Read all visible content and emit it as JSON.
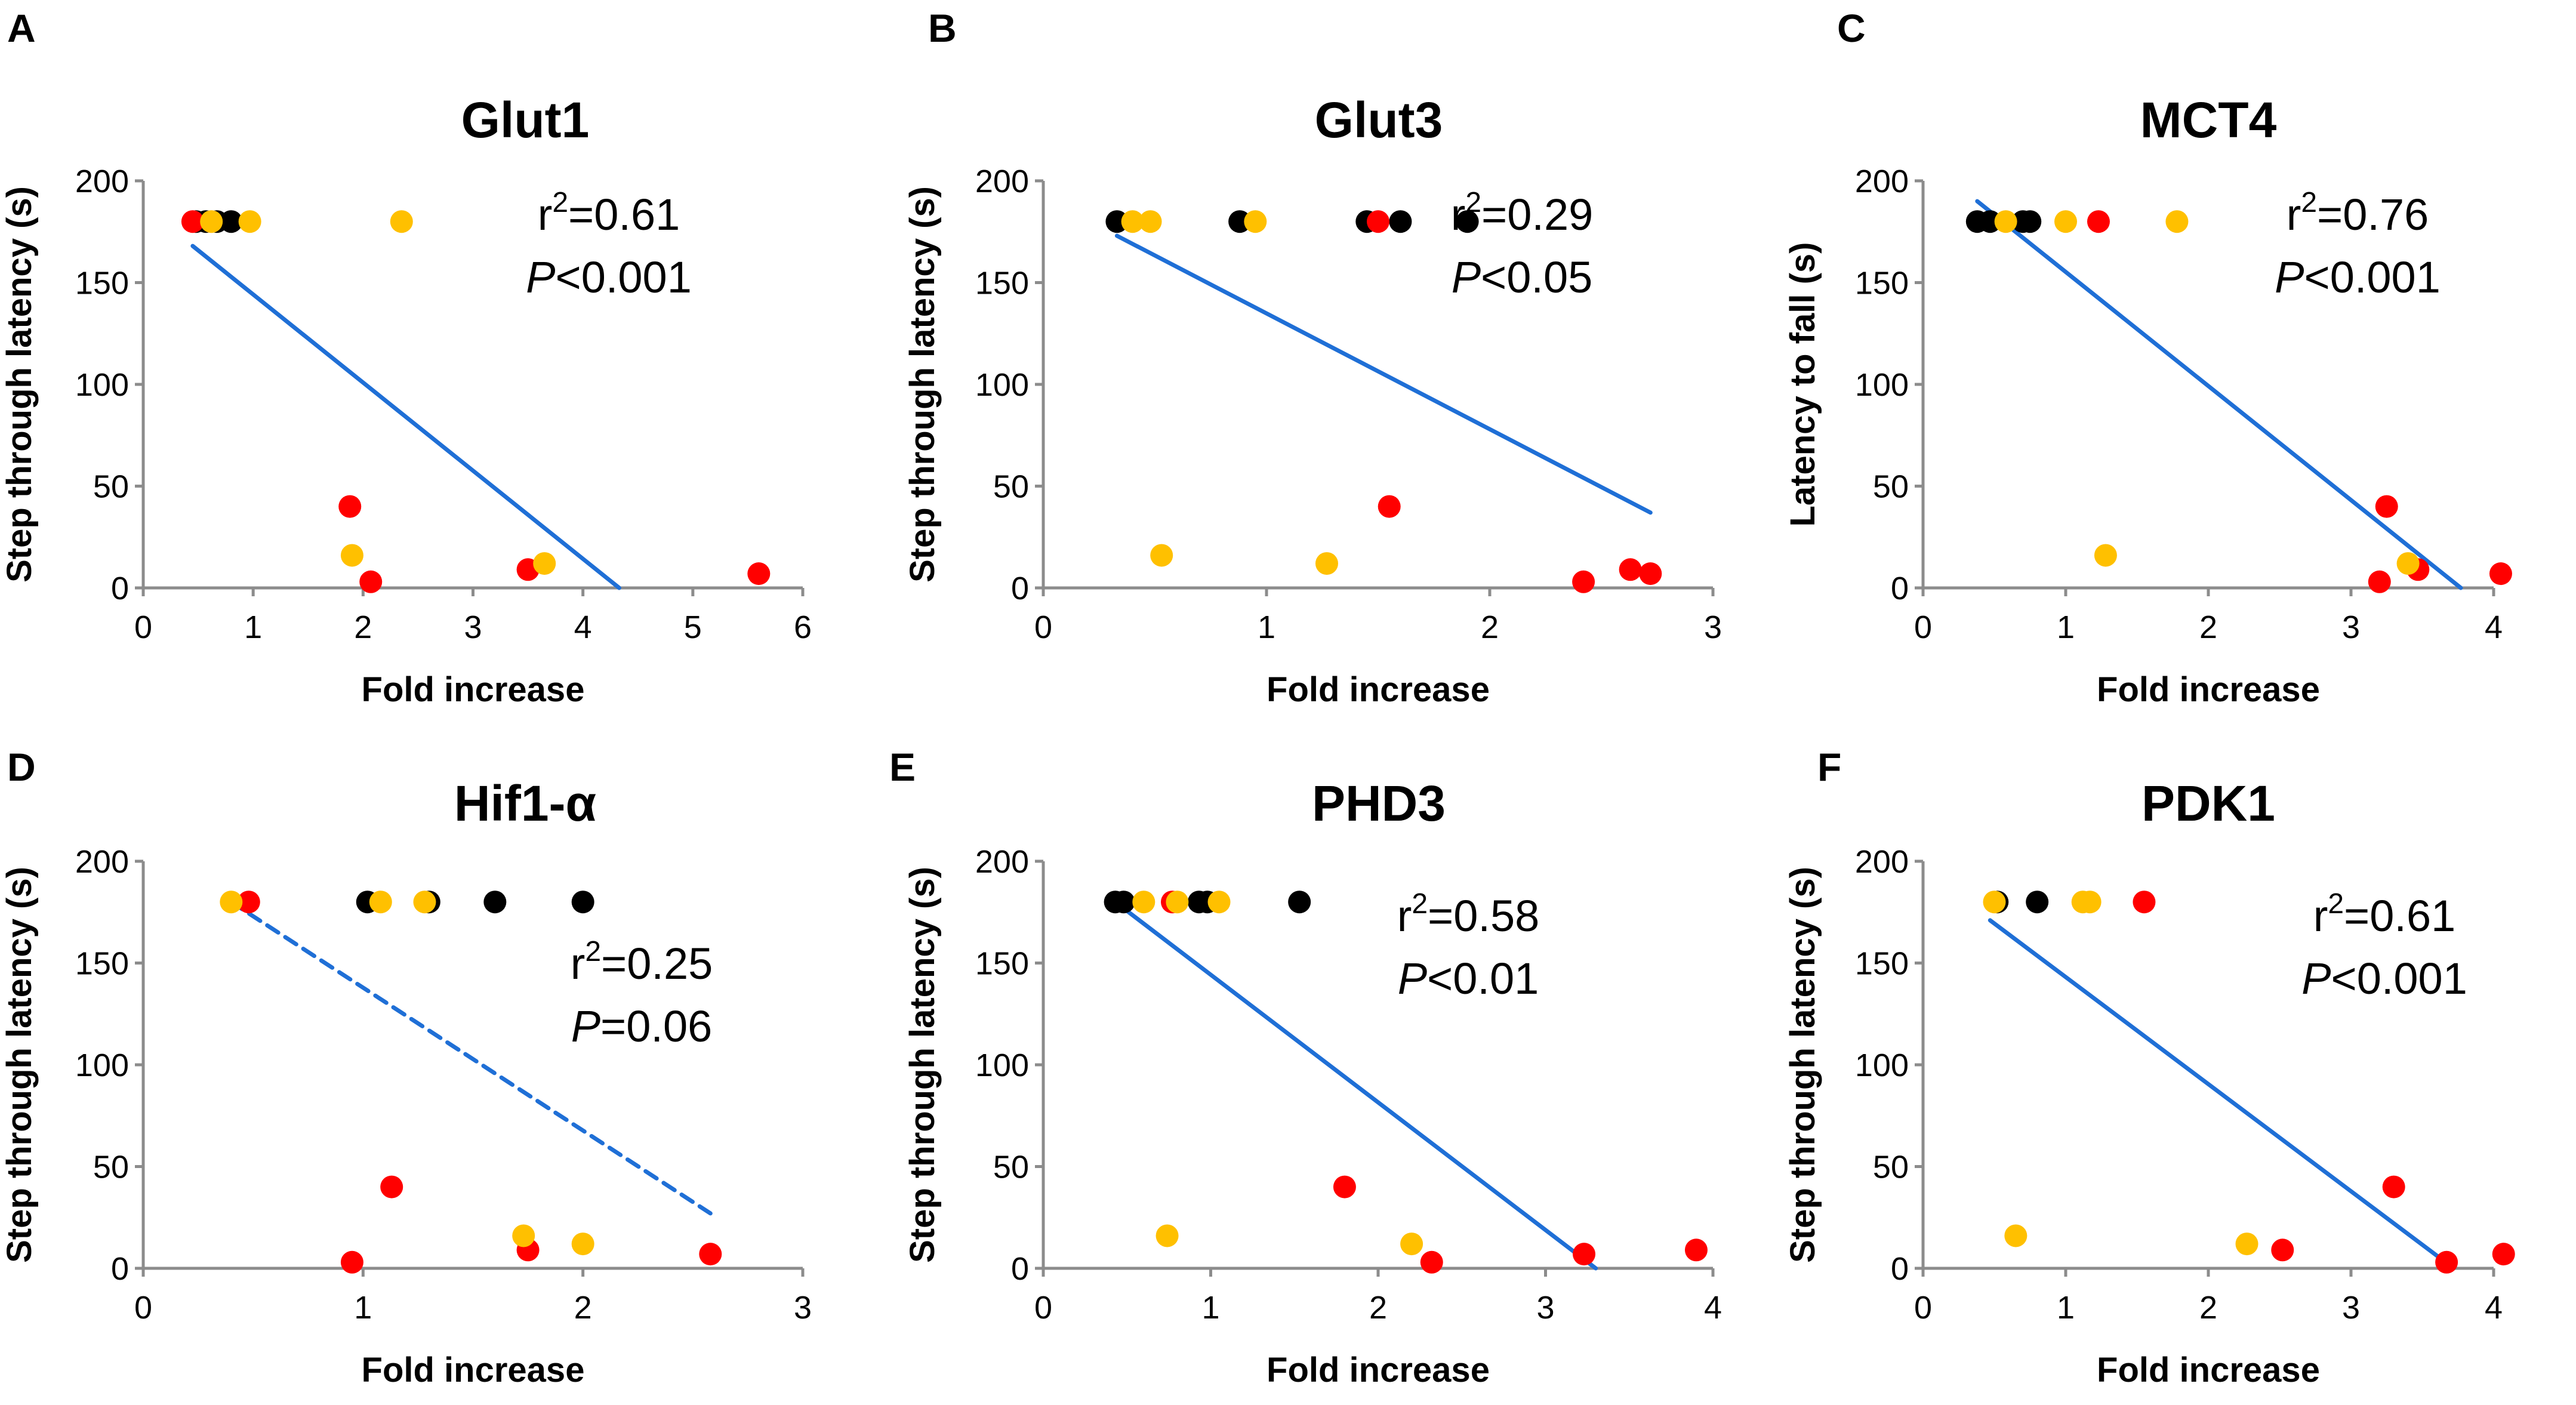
{
  "colors": {
    "black": "#000000",
    "red": "#ff0000",
    "yellow": "#ffc000",
    "fit_line": "#1f6fd6",
    "axis": "#8c8c8c"
  },
  "chart_data": [
    {
      "type": "scatter",
      "panel": "A",
      "title": "Glut1",
      "xlabel": "Fold increase",
      "ylabel": "Step through latency (s)",
      "xlim": [
        0,
        6
      ],
      "ylim": [
        0,
        200
      ],
      "xticks": [
        0,
        1,
        2,
        3,
        4,
        5,
        6
      ],
      "yticks": [
        0,
        50,
        100,
        150,
        200
      ],
      "xtick_labels": [
        "0",
        "1",
        "2",
        "3",
        "4",
        "5",
        "6"
      ],
      "ytick_labels": [
        "0",
        "50",
        "100",
        "150",
        "200"
      ],
      "stat_r2": "0.61",
      "stat_p_op": "<",
      "stat_p_value": "0.001",
      "fit": {
        "style": "solid",
        "x1": 0.45,
        "y1": 168,
        "x2": 4.33,
        "y2": 0
      },
      "series": [
        {
          "name": "black",
          "color": "#000000",
          "points": [
            [
              0.48,
              180
            ],
            [
              0.57,
              180
            ],
            [
              0.67,
              180
            ],
            [
              0.8,
              180
            ]
          ]
        },
        {
          "name": "red",
          "color": "#ff0000",
          "points": [
            [
              0.45,
              180
            ],
            [
              1.88,
              40
            ],
            [
              2.07,
              3
            ],
            [
              3.5,
              9
            ],
            [
              5.6,
              7
            ]
          ]
        },
        {
          "name": "yellow",
          "color": "#ffc000",
          "points": [
            [
              0.62,
              180
            ],
            [
              0.97,
              180
            ],
            [
              2.35,
              180
            ],
            [
              1.9,
              16
            ],
            [
              3.65,
              12
            ]
          ]
        }
      ]
    },
    {
      "type": "scatter",
      "panel": "B",
      "title": "Glut3",
      "xlabel": "Fold increase",
      "ylabel": "Step through latency (s)",
      "xlim": [
        0,
        3
      ],
      "ylim": [
        0,
        200
      ],
      "xticks": [
        0,
        1,
        2,
        3
      ],
      "yticks": [
        0,
        50,
        100,
        150,
        200
      ],
      "xtick_labels": [
        "0",
        "1",
        "2",
        "3"
      ],
      "ytick_labels": [
        "0",
        "50",
        "100",
        "150",
        "200"
      ],
      "stat_r2": "0.29",
      "stat_p_op": "<",
      "stat_p_value": "0.05",
      "fit": {
        "style": "solid",
        "x1": 0.33,
        "y1": 173,
        "x2": 2.72,
        "y2": 37
      },
      "series": [
        {
          "name": "black",
          "color": "#000000",
          "points": [
            [
              0.33,
              180
            ],
            [
              0.88,
              180
            ],
            [
              1.45,
              180
            ],
            [
              1.6,
              180
            ],
            [
              1.9,
              180
            ]
          ]
        },
        {
          "name": "red",
          "color": "#ff0000",
          "points": [
            [
              1.5,
              180
            ],
            [
              1.55,
              40
            ],
            [
              2.42,
              3
            ],
            [
              2.63,
              9
            ],
            [
              2.72,
              7
            ]
          ]
        },
        {
          "name": "yellow",
          "color": "#ffc000",
          "points": [
            [
              0.4,
              180
            ],
            [
              0.48,
              180
            ],
            [
              0.95,
              180
            ],
            [
              0.53,
              16
            ],
            [
              1.27,
              12
            ]
          ]
        }
      ]
    },
    {
      "type": "scatter",
      "panel": "C",
      "title": "MCT4",
      "xlabel": "Fold increase",
      "ylabel": "Latency to fall (s)",
      "xlim": [
        0,
        4
      ],
      "ylim": [
        0,
        200
      ],
      "xticks": [
        0,
        1,
        2,
        3,
        4
      ],
      "yticks": [
        0,
        50,
        100,
        150,
        200
      ],
      "xtick_labels": [
        "0",
        "1",
        "2",
        "3",
        "4"
      ],
      "ytick_labels": [
        "0",
        "50",
        "100",
        "150",
        "200"
      ],
      "stat_r2": "0.76",
      "stat_p_op": "<",
      "stat_p_value": "0.001",
      "fit": {
        "style": "solid",
        "x1": 0.38,
        "y1": 190,
        "x2": 3.77,
        "y2": 0
      },
      "series": [
        {
          "name": "black",
          "color": "#000000",
          "points": [
            [
              0.38,
              180
            ],
            [
              0.47,
              180
            ],
            [
              0.7,
              180
            ],
            [
              0.75,
              180
            ]
          ]
        },
        {
          "name": "red",
          "color": "#ff0000",
          "points": [
            [
              1.23,
              180
            ],
            [
              3.25,
              40
            ],
            [
              3.2,
              3
            ],
            [
              3.47,
              9
            ],
            [
              4.05,
              7
            ]
          ]
        },
        {
          "name": "yellow",
          "color": "#ffc000",
          "points": [
            [
              0.58,
              180
            ],
            [
              1.0,
              180
            ],
            [
              1.78,
              180
            ],
            [
              1.28,
              16
            ],
            [
              3.4,
              12
            ]
          ]
        }
      ]
    },
    {
      "type": "scatter",
      "panel": "D",
      "title": "Hif1-α",
      "xlabel": "Fold increase",
      "ylabel": "Step through latency (s)",
      "xlim": [
        0,
        3
      ],
      "ylim": [
        0,
        200
      ],
      "xticks": [
        0,
        1,
        2,
        3
      ],
      "yticks": [
        0,
        50,
        100,
        150,
        200
      ],
      "xtick_labels": [
        "0",
        "1",
        "2",
        "3"
      ],
      "ytick_labels": [
        "0",
        "50",
        "100",
        "150",
        "200"
      ],
      "stat_r2": "0.25",
      "stat_p_op": "=",
      "stat_p_value": "0.06",
      "fit": {
        "style": "dashed",
        "x1": 0.4,
        "y1": 180,
        "x2": 2.58,
        "y2": 27
      },
      "series": [
        {
          "name": "black",
          "color": "#000000",
          "points": [
            [
              1.02,
              180
            ],
            [
              1.3,
              180
            ],
            [
              1.6,
              180
            ],
            [
              2.0,
              180
            ]
          ]
        },
        {
          "name": "red",
          "color": "#ff0000",
          "points": [
            [
              0.48,
              180
            ],
            [
              1.13,
              40
            ],
            [
              0.95,
              3
            ],
            [
              1.75,
              9
            ],
            [
              2.58,
              7
            ]
          ]
        },
        {
          "name": "yellow",
          "color": "#ffc000",
          "points": [
            [
              0.4,
              180
            ],
            [
              1.08,
              180
            ],
            [
              1.28,
              180
            ],
            [
              1.73,
              16
            ],
            [
              2.0,
              12
            ]
          ]
        }
      ]
    },
    {
      "type": "scatter",
      "panel": "E",
      "title": "PHD3",
      "xlabel": "Fold increase",
      "ylabel": "Step through latency (s)",
      "xlim": [
        0,
        4
      ],
      "ylim": [
        0,
        200
      ],
      "xticks": [
        0,
        1,
        2,
        3,
        4
      ],
      "yticks": [
        0,
        50,
        100,
        150,
        200
      ],
      "xtick_labels": [
        "0",
        "1",
        "2",
        "3",
        "4"
      ],
      "ytick_labels": [
        "0",
        "50",
        "100",
        "150",
        "200"
      ],
      "stat_r2": "0.58",
      "stat_p_op": "<",
      "stat_p_value": "0.01",
      "fit": {
        "style": "solid",
        "x1": 0.43,
        "y1": 180,
        "x2": 3.3,
        "y2": 0
      },
      "series": [
        {
          "name": "black",
          "color": "#000000",
          "points": [
            [
              0.43,
              180
            ],
            [
              0.48,
              180
            ],
            [
              0.93,
              180
            ],
            [
              0.98,
              180
            ],
            [
              1.53,
              180
            ]
          ]
        },
        {
          "name": "red",
          "color": "#ff0000",
          "points": [
            [
              0.77,
              180
            ],
            [
              1.8,
              40
            ],
            [
              2.32,
              3
            ],
            [
              3.23,
              7
            ],
            [
              3.9,
              9
            ]
          ]
        },
        {
          "name": "yellow",
          "color": "#ffc000",
          "points": [
            [
              0.6,
              180
            ],
            [
              0.8,
              180
            ],
            [
              1.05,
              180
            ],
            [
              0.74,
              16
            ],
            [
              2.2,
              12
            ]
          ]
        }
      ]
    },
    {
      "type": "scatter",
      "panel": "F",
      "title": "PDK1",
      "xlabel": "Fold increase",
      "ylabel": "Step through latency (s)",
      "xlim": [
        0,
        4
      ],
      "ylim": [
        0,
        200
      ],
      "xticks": [
        0,
        1,
        2,
        3,
        4
      ],
      "yticks": [
        0,
        50,
        100,
        150,
        200
      ],
      "xtick_labels": [
        "0",
        "1",
        "2",
        "3",
        "4"
      ],
      "ytick_labels": [
        "0",
        "50",
        "100",
        "150",
        "200"
      ],
      "stat_r2": "0.61",
      "stat_p_op": "<",
      "stat_p_value": "0.001",
      "fit": {
        "style": "solid",
        "x1": 0.47,
        "y1": 171,
        "x2": 3.72,
        "y2": 0
      },
      "series": [
        {
          "name": "black",
          "color": "#000000",
          "points": [
            [
              0.52,
              180
            ],
            [
              0.8,
              180
            ]
          ]
        },
        {
          "name": "red",
          "color": "#ff0000",
          "points": [
            [
              1.55,
              180
            ],
            [
              3.3,
              40
            ],
            [
              2.52,
              9
            ],
            [
              3.67,
              3
            ],
            [
              4.07,
              7
            ]
          ]
        },
        {
          "name": "yellow",
          "color": "#ffc000",
          "points": [
            [
              0.5,
              180
            ],
            [
              1.12,
              180
            ],
            [
              1.17,
              180
            ],
            [
              0.65,
              16
            ],
            [
              2.27,
              12
            ]
          ]
        }
      ]
    }
  ]
}
